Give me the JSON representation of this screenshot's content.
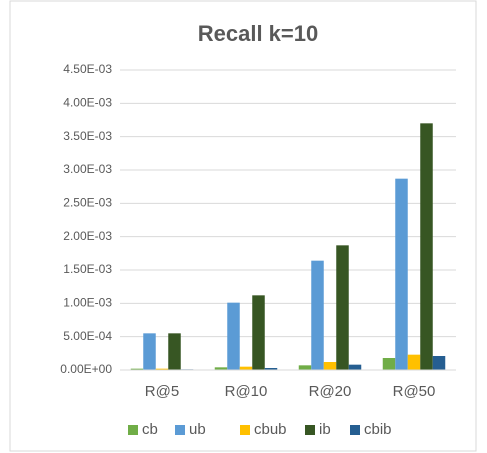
{
  "chart_data": {
    "type": "bar",
    "title": "Recall k=10",
    "categories": [
      "R@5",
      "R@10",
      "R@20",
      "R@50"
    ],
    "series": [
      {
        "name": "cb",
        "color": "#70ad47",
        "values": [
          2e-05,
          4e-05,
          7e-05,
          0.00018
        ]
      },
      {
        "name": "ub",
        "color": "#5b9bd5",
        "values": [
          0.00055,
          0.00101,
          0.00164,
          0.00287
        ]
      },
      {
        "name": "cbub",
        "color": "#ffc000",
        "values": [
          2e-05,
          5e-05,
          0.00012,
          0.00023
        ]
      },
      {
        "name": "ib",
        "color": "#375623",
        "values": [
          0.00055,
          0.00112,
          0.00187,
          0.0037
        ]
      },
      {
        "name": "cbib",
        "color": "#255e91",
        "values": [
          1e-05,
          3e-05,
          8e-05,
          0.00021
        ]
      }
    ],
    "ylim": [
      0,
      0.0045
    ],
    "yticks": [
      {
        "value": 0,
        "label": "0.00E+00"
      },
      {
        "value": 0.0005,
        "label": "5.00E-04"
      },
      {
        "value": 0.001,
        "label": "1.00E-03"
      },
      {
        "value": 0.0015,
        "label": "1.50E-03"
      },
      {
        "value": 0.002,
        "label": "2.00E-03"
      },
      {
        "value": 0.0025,
        "label": "2.50E-03"
      },
      {
        "value": 0.003,
        "label": "3.00E-03"
      },
      {
        "value": 0.0035,
        "label": "3.50E-03"
      },
      {
        "value": 0.004,
        "label": "4.00E-03"
      },
      {
        "value": 0.0045,
        "label": "4.50E-03"
      }
    ],
    "grid": true,
    "legend": "bottom"
  }
}
